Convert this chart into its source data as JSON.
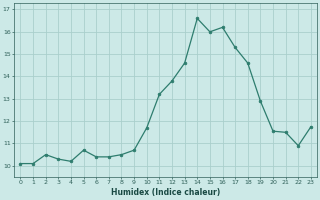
{
  "x": [
    0,
    1,
    2,
    3,
    4,
    5,
    6,
    7,
    8,
    9,
    10,
    11,
    12,
    13,
    14,
    15,
    16,
    17,
    18,
    19,
    20,
    21,
    22,
    23
  ],
  "y": [
    10.1,
    10.1,
    10.5,
    10.3,
    10.2,
    10.7,
    10.4,
    10.4,
    10.5,
    10.7,
    11.7,
    13.2,
    13.8,
    14.6,
    16.6,
    16.0,
    16.2,
    15.3,
    14.6,
    12.9,
    11.55,
    11.5,
    10.9,
    11.75
  ],
  "xlabel": "Humidex (Indice chaleur)",
  "ylim": [
    9.5,
    17.3
  ],
  "xlim": [
    -0.5,
    23.5
  ],
  "line_color": "#2e7d6e",
  "marker_color": "#2e7d6e",
  "bg_color": "#cce9e7",
  "grid_color": "#aacfcc",
  "tick_label_color": "#2e5f58",
  "axis_label_color": "#1a4a44",
  "yticks": [
    10,
    11,
    12,
    13,
    14,
    15,
    16,
    17
  ],
  "xticks": [
    0,
    1,
    2,
    3,
    4,
    5,
    6,
    7,
    8,
    9,
    10,
    11,
    12,
    13,
    14,
    15,
    16,
    17,
    18,
    19,
    20,
    21,
    22,
    23
  ]
}
